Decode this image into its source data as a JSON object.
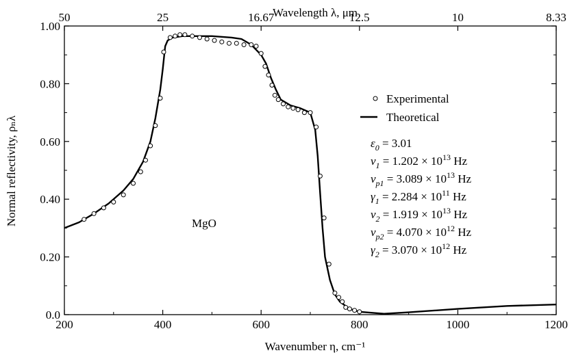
{
  "chart_data": {
    "type": "line",
    "title": "",
    "xlabel": "Wavenumber η, cm⁻¹",
    "ylabel": "Normal reflectivity, ρₙλ",
    "top_xlabel": "Wavelength λ, μm",
    "xlim": [
      200,
      1200
    ],
    "ylim": [
      0,
      1.0
    ],
    "x_ticks": [
      200,
      400,
      600,
      800,
      1000,
      1200
    ],
    "x_tick_labels": [
      "200",
      "400",
      "600",
      "800",
      "1000",
      "1200"
    ],
    "y_ticks": [
      0,
      0.2,
      0.4,
      0.6,
      0.8,
      1.0
    ],
    "y_tick_labels": [
      "0.0",
      "0.20",
      "0.40",
      "0.60",
      "0.80",
      "1.00"
    ],
    "top_ticks": [
      200,
      400,
      600,
      800,
      1000,
      1200
    ],
    "top_tick_labels": [
      "50",
      "25",
      "16.67",
      "12.5",
      "10",
      "8.33"
    ],
    "grid": false,
    "legend_position": "right",
    "annotation": "MgO",
    "series": [
      {
        "name": "Experimental",
        "kind": "scatter",
        "x": [
          240,
          260,
          280,
          300,
          320,
          340,
          355,
          365,
          375,
          385,
          395,
          402,
          415,
          425,
          435,
          445,
          460,
          475,
          490,
          505,
          520,
          535,
          550,
          565,
          580,
          590,
          600,
          608,
          615,
          622,
          628,
          635,
          645,
          655,
          665,
          675,
          688,
          700,
          712,
          720,
          728,
          738,
          750,
          758,
          765,
          772,
          780,
          790,
          800
        ],
        "y": [
          0.33,
          0.35,
          0.37,
          0.39,
          0.415,
          0.455,
          0.495,
          0.535,
          0.585,
          0.655,
          0.75,
          0.91,
          0.96,
          0.965,
          0.97,
          0.97,
          0.965,
          0.96,
          0.955,
          0.95,
          0.945,
          0.94,
          0.94,
          0.935,
          0.935,
          0.93,
          0.905,
          0.86,
          0.83,
          0.795,
          0.76,
          0.745,
          0.73,
          0.72,
          0.715,
          0.71,
          0.7,
          0.7,
          0.65,
          0.48,
          0.335,
          0.175,
          0.075,
          0.06,
          0.045,
          0.025,
          0.02,
          0.015,
          0.01
        ]
      },
      {
        "name": "Theoretical",
        "kind": "line",
        "x": [
          200,
          230,
          260,
          290,
          320,
          340,
          360,
          375,
          385,
          395,
          400,
          403,
          405,
          410,
          420,
          440,
          460,
          500,
          540,
          560,
          580,
          600,
          610,
          620,
          630,
          640,
          660,
          680,
          700,
          710,
          715,
          720,
          725,
          730,
          740,
          750,
          760,
          780,
          800,
          850,
          900,
          1000,
          1100,
          1200
        ],
        "y": [
          0.3,
          0.32,
          0.35,
          0.385,
          0.43,
          0.47,
          0.53,
          0.6,
          0.68,
          0.78,
          0.85,
          0.9,
          0.93,
          0.95,
          0.96,
          0.965,
          0.965,
          0.965,
          0.96,
          0.955,
          0.935,
          0.9,
          0.87,
          0.82,
          0.78,
          0.745,
          0.725,
          0.715,
          0.7,
          0.64,
          0.55,
          0.42,
          0.3,
          0.2,
          0.12,
          0.07,
          0.045,
          0.02,
          0.01,
          0.003,
          0.008,
          0.02,
          0.03,
          0.035
        ]
      }
    ],
    "parameters": [
      {
        "sym": "ε",
        "sub": "0",
        "value": "= 3.01",
        "exp": "",
        "unit": ""
      },
      {
        "sym": "ν",
        "sub": "1",
        "value": "= 1.202 × 10",
        "exp": "13",
        "unit": " Hz"
      },
      {
        "sym": "ν",
        "sub": "p1",
        "value": "= 3.089 × 10",
        "exp": "13",
        "unit": " Hz"
      },
      {
        "sym": "γ",
        "sub": "1",
        "value": "= 2.284 × 10",
        "exp": "11",
        "unit": " Hz"
      },
      {
        "sym": "ν",
        "sub": "2",
        "value": "= 1.919 × 10",
        "exp": "13",
        "unit": " Hz"
      },
      {
        "sym": "ν",
        "sub": "p2",
        "value": "= 4.070 × 10",
        "exp": "12",
        "unit": " Hz"
      },
      {
        "sym": "γ",
        "sub": "2",
        "value": "= 3.070 × 10",
        "exp": "12",
        "unit": " Hz"
      }
    ]
  }
}
